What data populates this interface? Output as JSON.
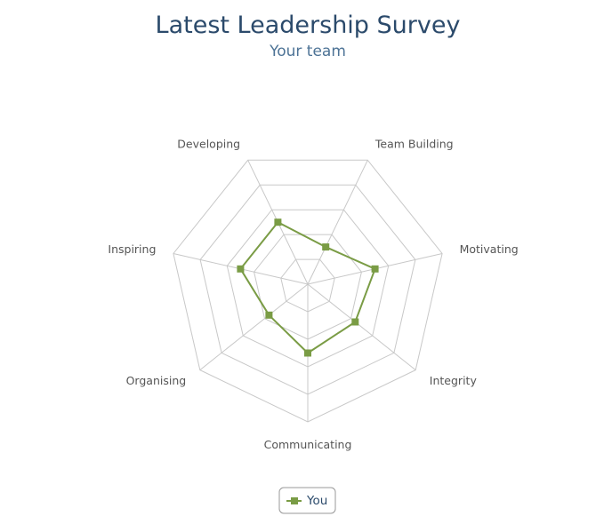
{
  "chart_data": {
    "type": "radar",
    "title": "Latest Leadership Survey",
    "subtitle": "Your team",
    "categories": [
      "Team Building",
      "Motivating",
      "Integrity",
      "Communicating",
      "Organising",
      "Inspiring",
      "Developing"
    ],
    "series": [
      {
        "name": "You",
        "values": [
          1.5,
          2.5,
          2.2,
          2.5,
          1.8,
          2.5,
          2.5
        ]
      }
    ],
    "rmax": 5,
    "grid_levels": 5,
    "grid": true,
    "legend_position": "bottom-center",
    "series_color": "#7a9c45",
    "marker": "square"
  }
}
